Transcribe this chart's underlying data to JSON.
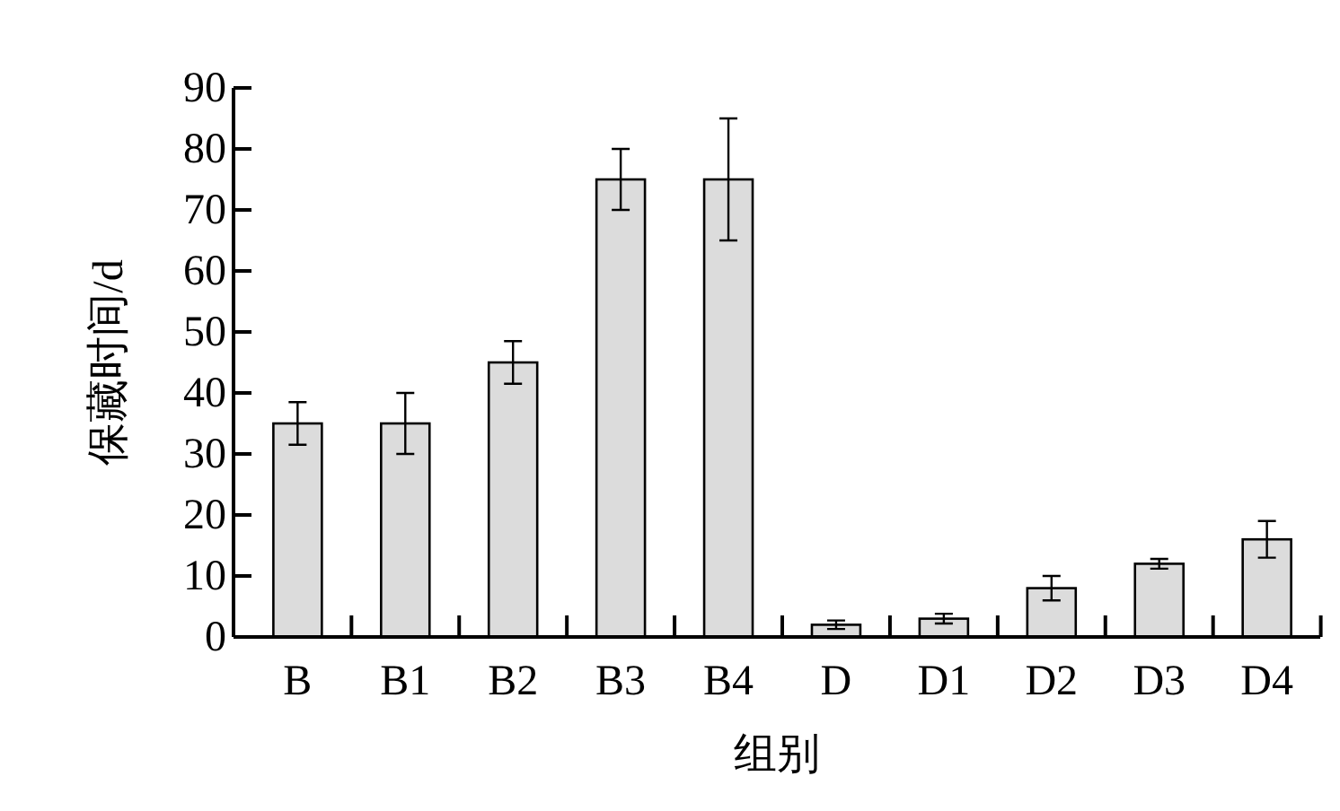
{
  "chart_data": {
    "type": "bar",
    "xlabel": "组别",
    "ylabel": "保藏时间/d",
    "categories": [
      "B",
      "B1",
      "B2",
      "B3",
      "B4",
      "D",
      "D1",
      "D2",
      "D3",
      "D4"
    ],
    "values": [
      35,
      35,
      45,
      75,
      75,
      2,
      3,
      8,
      12,
      16
    ],
    "errors": [
      3.5,
      5,
      3.5,
      5,
      10,
      0.7,
      0.8,
      2,
      0.8,
      3
    ],
    "color": "#dcdcdc",
    "ylim": [
      0,
      90
    ],
    "yticks": [
      0,
      10,
      20,
      30,
      40,
      50,
      60,
      70,
      80,
      90
    ],
    "grid": false
  }
}
